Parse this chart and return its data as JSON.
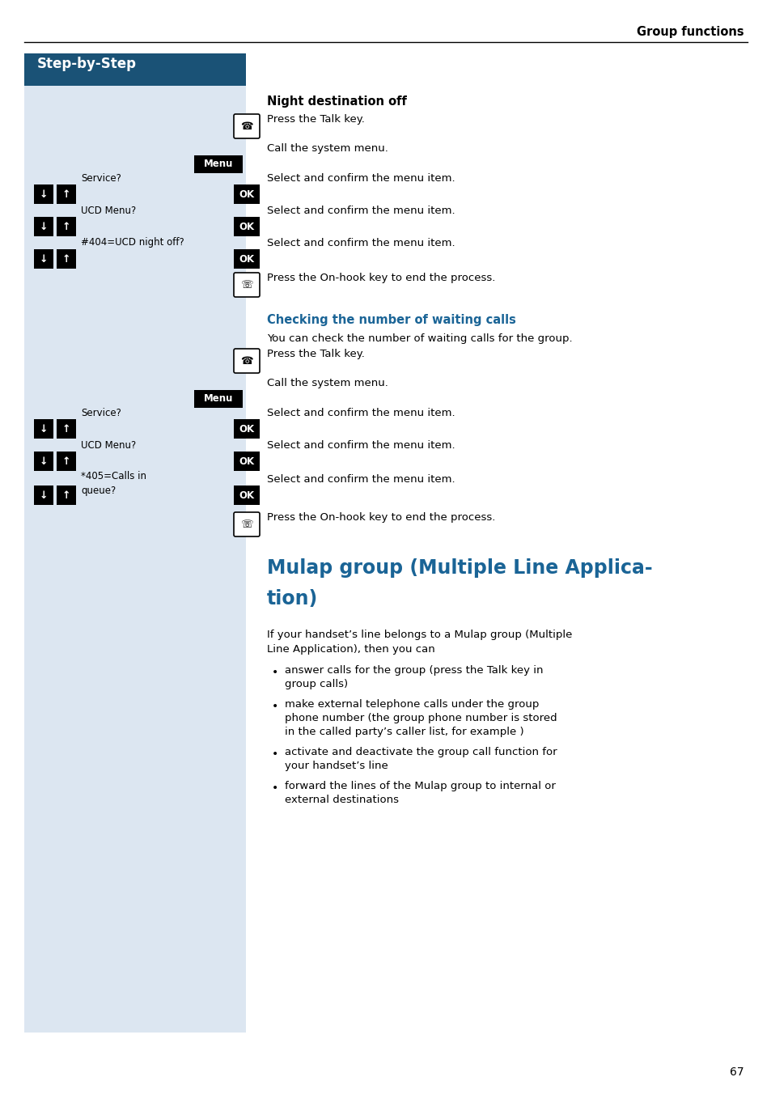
{
  "page_bg": "#ffffff",
  "header_text": "Group functions",
  "step_by_step_bg": "#1a5276",
  "step_by_step_text": "Step-by-Step",
  "left_panel_bg": "#dce6f1",
  "blue_heading_color": "#1a6496",
  "mulap_title_color": "#1a6496",
  "page_number": "67",
  "section1_title": "Night destination off",
  "section2_title": "Checking the number of waiting calls",
  "section3_title_line1": "Mulap group (Multiple Line Applica-",
  "section3_title_line2": "tion)",
  "mulap_intro_line1": "If your handset’s line belongs to a Mulap group (Multiple",
  "mulap_intro_line2": "Line Application), then you can",
  "bullet_points": [
    [
      "answer calls for the group (press the Talk key in",
      "group calls)"
    ],
    [
      "make external telephone calls under the group",
      "phone number (the group phone number is stored",
      "in the called party’s caller list, for example )"
    ],
    [
      "activate and deactivate the group call function for",
      "your handset’s line"
    ],
    [
      "forward the lines of the Mulap group to internal or",
      "external destinations"
    ]
  ]
}
